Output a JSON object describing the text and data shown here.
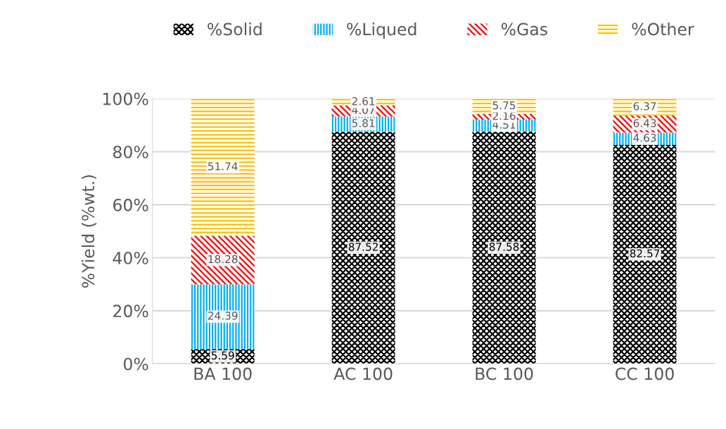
{
  "chart_data": {
    "type": "bar",
    "stacked": true,
    "ylabel": "%Yield (%wt.)",
    "categories": [
      "BA 100",
      "AC 100",
      "BC 100",
      "CC 100"
    ],
    "series": [
      {
        "name": "%Solid",
        "color": "#000000",
        "values": [
          5.59,
          87.52,
          87.58,
          82.57
        ]
      },
      {
        "name": "%Liqued",
        "color": "#00b0f0",
        "values": [
          24.39,
          5.81,
          4.51,
          4.63
        ]
      },
      {
        "name": "%Gas",
        "color": "#ff0000",
        "values": [
          18.28,
          4.07,
          2.16,
          6.43
        ]
      },
      {
        "name": "%Other",
        "color": "#ffc000",
        "values": [
          51.74,
          2.61,
          5.75,
          6.37
        ]
      }
    ],
    "ylim": [
      0,
      100
    ],
    "yticks": [
      {
        "value": 0,
        "label": "0%"
      },
      {
        "value": 20,
        "label": "20%"
      },
      {
        "value": 40,
        "label": "40%"
      },
      {
        "value": 60,
        "label": "60%"
      },
      {
        "value": 80,
        "label": "80%"
      },
      {
        "value": 100,
        "label": "100%"
      }
    ],
    "grid": "y",
    "legend": "top",
    "data_labels": true
  }
}
